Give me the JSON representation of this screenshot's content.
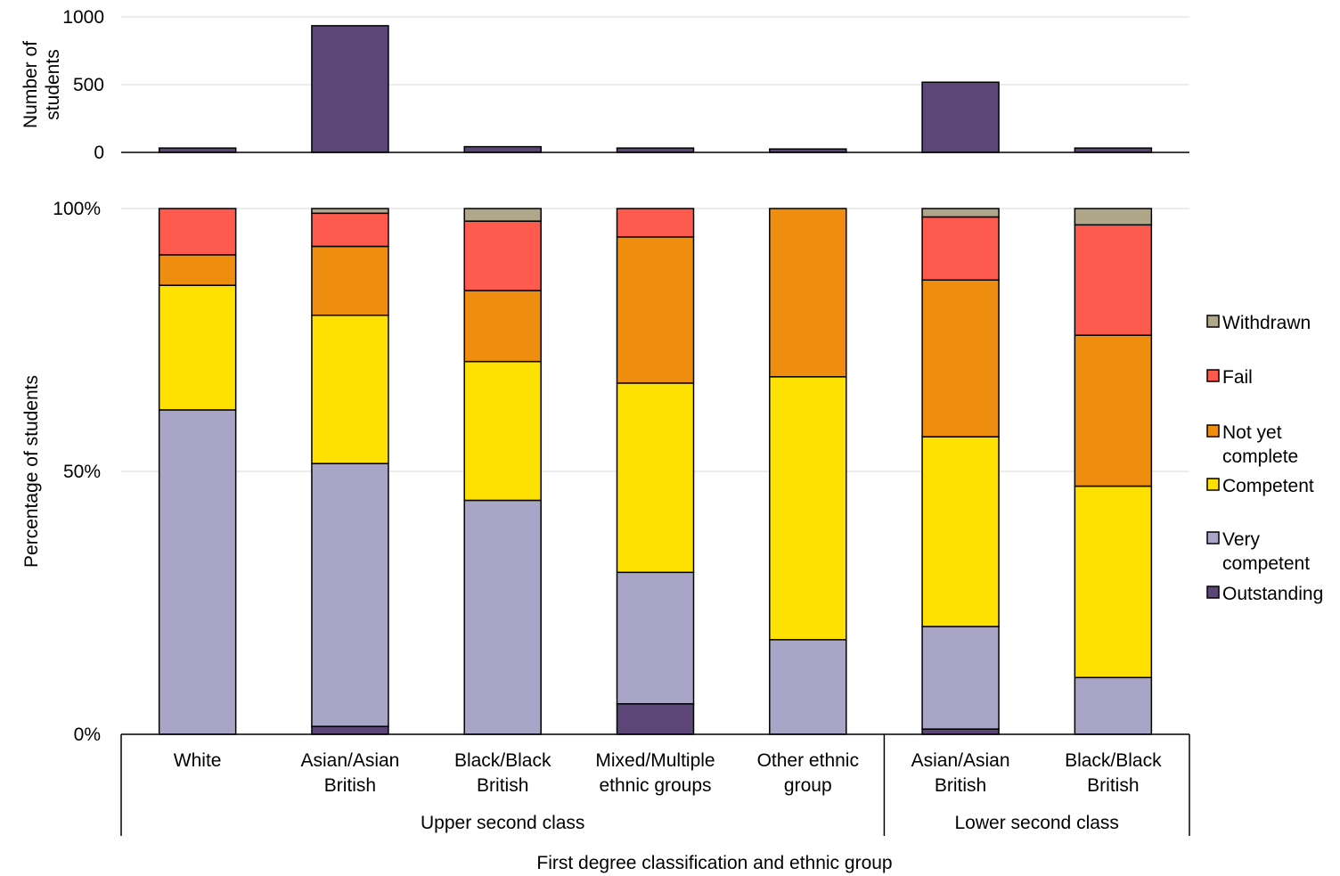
{
  "chart_data": [
    {
      "type": "bar",
      "panel": "top",
      "ylabel_lines": [
        "Number of",
        "students"
      ],
      "ylim": [
        0,
        1000
      ],
      "yticks": [
        "0",
        "500",
        "1000"
      ],
      "categories": [
        "White",
        "Asian/Asian British",
        "Black/Black British",
        "Mixed/Multiple ethnic groups",
        "Other ethnic group",
        "Asian/Asian British",
        "Black/Black British"
      ],
      "values": [
        32,
        935,
        42,
        32,
        25,
        518,
        32
      ],
      "color": "#5b4677",
      "grid": true
    },
    {
      "type": "bar",
      "stacked": true,
      "percent": true,
      "panel": "bottom",
      "ylabel": "Percentage of students",
      "xlabel": "First degree classification and ethnic group",
      "yticks": [
        "0%",
        "50%",
        "100%"
      ],
      "ylim": [
        0,
        100
      ],
      "categories": [
        {
          "lines": [
            "White"
          ]
        },
        {
          "lines": [
            "Asian/Asian",
            "British"
          ]
        },
        {
          "lines": [
            "Black/Black",
            "British"
          ]
        },
        {
          "lines": [
            "Mixed/Multiple",
            "ethnic groups"
          ]
        },
        {
          "lines": [
            "Other ethnic",
            "group"
          ]
        },
        {
          "lines": [
            "Asian/Asian",
            "British"
          ]
        },
        {
          "lines": [
            "Black/Black",
            "British"
          ]
        }
      ],
      "groups": [
        {
          "label": "Upper second class",
          "span": 5
        },
        {
          "label": "Lower second class",
          "span": 2
        }
      ],
      "series": [
        {
          "name": "Outstanding",
          "color": "#5b4677",
          "values": [
            0,
            1.5,
            0,
            5.8,
            0,
            1.0,
            0
          ]
        },
        {
          "name": "Very competent",
          "color": "#a8a5c6",
          "values": [
            61.7,
            50.0,
            44.5,
            25.0,
            18.0,
            19.5,
            10.8
          ]
        },
        {
          "name": "Competent",
          "color": "#ffe100",
          "values": [
            23.7,
            28.2,
            26.4,
            36.0,
            50.0,
            36.1,
            36.4
          ]
        },
        {
          "name": "Not yet complete",
          "color": "#ef8e0e",
          "values": [
            5.8,
            13.1,
            13.5,
            27.8,
            32.0,
            29.8,
            28.7
          ]
        },
        {
          "name": "Fail",
          "color": "#ff5a4e",
          "values": [
            8.8,
            6.3,
            13.2,
            5.4,
            0,
            12.0,
            21.0
          ]
        },
        {
          "name": "Withdrawn",
          "color": "#b0a78a",
          "values": [
            0,
            0.9,
            2.4,
            0,
            0,
            1.6,
            3.1
          ]
        }
      ],
      "legend": [
        {
          "lines": [
            "Withdrawn"
          ],
          "color": "#b0a78a"
        },
        {
          "lines": [
            "Fail"
          ],
          "color": "#ff5a4e"
        },
        {
          "lines": [
            "Not yet",
            "complete"
          ],
          "color": "#ef8e0e"
        },
        {
          "lines": [
            "Competent"
          ],
          "color": "#ffe100"
        },
        {
          "lines": [
            "Very",
            "competent"
          ],
          "color": "#a8a5c6"
        },
        {
          "lines": [
            "Outstanding"
          ],
          "color": "#5b4677"
        }
      ],
      "legend_position": "right",
      "grid": true
    }
  ]
}
